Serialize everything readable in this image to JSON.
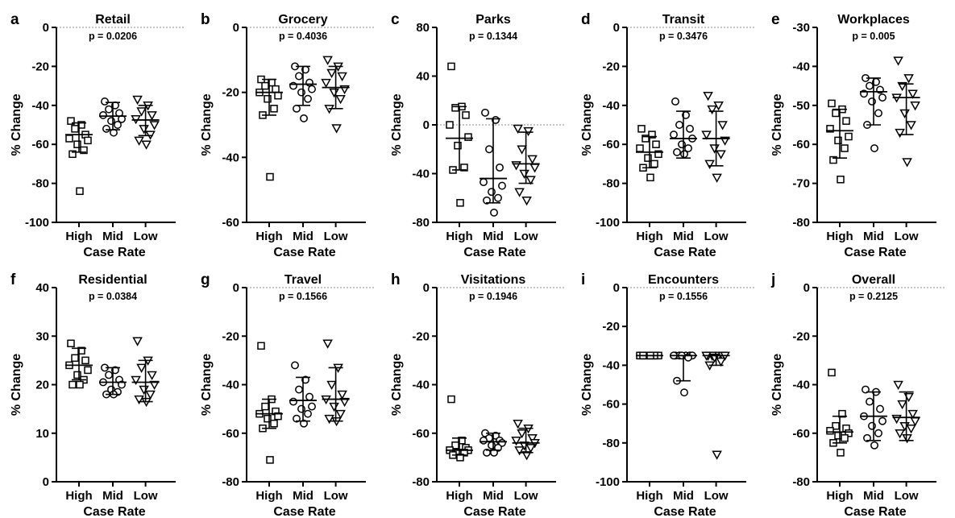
{
  "chart_data": [
    {
      "type": "scatter",
      "panel": "a",
      "title": "Retail",
      "p_value": "p = 0.0206",
      "xlabel": "Case Rate",
      "ylabel": "% Change",
      "categories": [
        "High",
        "Mid",
        "Low"
      ],
      "yticks": [
        0,
        -20,
        -40,
        -60,
        -80,
        -100
      ],
      "ylim": [
        -100,
        0
      ],
      "zero_line": true,
      "markers": [
        "square",
        "circle",
        "triangle-down"
      ],
      "points": [
        [
          -48,
          -50,
          -52,
          -55,
          -57,
          -58,
          -60,
          -63,
          -65,
          -84
        ],
        [
          -38,
          -40,
          -42,
          -44,
          -45,
          -47,
          -48,
          -50,
          -52,
          -54
        ],
        [
          -37,
          -40,
          -43,
          -45,
          -47,
          -50,
          -52,
          -55,
          -58,
          -60
        ]
      ],
      "mean": [
        -55,
        -45.5,
        -47.5
      ],
      "sd_upper": [
        -49,
        -38.5,
        -40
      ],
      "sd_lower": [
        -64,
        -52.5,
        -55.5
      ]
    },
    {
      "type": "scatter",
      "panel": "b",
      "title": "Grocery",
      "p_value": "p = 0.4036",
      "xlabel": "Case Rate",
      "ylabel": "% Change",
      "categories": [
        "High",
        "Mid",
        "Low"
      ],
      "yticks": [
        0,
        -20,
        -40,
        -60
      ],
      "ylim": [
        -60,
        0
      ],
      "zero_line": true,
      "markers": [
        "square",
        "circle",
        "triangle-down"
      ],
      "points": [
        [
          -16,
          -17,
          -18,
          -19,
          -20,
          -21,
          -22,
          -25,
          -27,
          -46
        ],
        [
          -12,
          -13,
          -15,
          -17,
          -18,
          -19,
          -20,
          -22,
          -25,
          -28
        ],
        [
          -10,
          -12,
          -14,
          -15,
          -17,
          -19,
          -20,
          -22,
          -25,
          -31
        ]
      ],
      "mean": [
        -20,
        -17.5,
        -18.5
      ],
      "sd_upper": [
        -16,
        -12,
        -12
      ],
      "sd_lower": [
        -27,
        -24,
        -25
      ]
    },
    {
      "type": "scatter",
      "panel": "c",
      "title": "Parks",
      "p_value": "p = 0.1344",
      "xlabel": "Case Rate",
      "ylabel": "% Change",
      "categories": [
        "High",
        "Mid",
        "Low"
      ],
      "yticks": [
        80,
        40,
        0,
        -40,
        -80
      ],
      "ylim": [
        -80,
        80
      ],
      "zero_line": true,
      "markers": [
        "square",
        "circle",
        "triangle-down"
      ],
      "points": [
        [
          48,
          15,
          14,
          8,
          0,
          -10,
          -17,
          -35,
          -37,
          -64
        ],
        [
          10,
          4,
          -20,
          -35,
          -47,
          -50,
          -55,
          -60,
          -62,
          -72
        ],
        [
          -3,
          -5,
          -20,
          -28,
          -33,
          -35,
          -40,
          -45,
          -55,
          -62
        ]
      ],
      "mean": [
        -11,
        -44,
        -32
      ],
      "sd_upper": [
        15,
        5,
        -6
      ],
      "sd_lower": [
        -37,
        -64,
        -48
      ]
    },
    {
      "type": "scatter",
      "panel": "d",
      "title": "Transit",
      "p_value": "p = 0.3476",
      "xlabel": "Case Rate",
      "ylabel": "% Change",
      "categories": [
        "High",
        "Mid",
        "Low"
      ],
      "yticks": [
        0,
        -20,
        -40,
        -60,
        -80,
        -100
      ],
      "ylim": [
        -100,
        0
      ],
      "zero_line": true,
      "markers": [
        "square",
        "circle",
        "triangle-down"
      ],
      "points": [
        [
          -52,
          -55,
          -57,
          -60,
          -62,
          -65,
          -67,
          -70,
          -72,
          -77
        ],
        [
          -38,
          -45,
          -50,
          -52,
          -55,
          -57,
          -60,
          -62,
          -64,
          -65
        ],
        [
          -35,
          -40,
          -42,
          -50,
          -55,
          -58,
          -62,
          -65,
          -70,
          -77
        ]
      ],
      "mean": [
        -64,
        -57,
        -57
      ],
      "sd_upper": [
        -56,
        -43,
        -43
      ],
      "sd_lower": [
        -72,
        -67,
        -71
      ]
    },
    {
      "type": "scatter",
      "panel": "e",
      "title": "Workplaces",
      "p_value": "p = 0.005",
      "xlabel": "Case Rate",
      "ylabel": "% Change",
      "categories": [
        "High",
        "Mid",
        "Low"
      ],
      "yticks": [
        -30,
        -40,
        -50,
        -60,
        -70,
        -80
      ],
      "ylim": [
        -80,
        -30
      ],
      "zero_line": false,
      "markers": [
        "square",
        "circle",
        "triangle-down"
      ],
      "points": [
        [
          -49.5,
          -51,
          -52,
          -54,
          -56,
          -58,
          -59,
          -61,
          -64,
          -69
        ],
        [
          -43,
          -44,
          -45,
          -46,
          -47,
          -48,
          -49,
          -52,
          -55,
          -61
        ],
        [
          -38.5,
          -43,
          -45,
          -47,
          -48,
          -50,
          -52,
          -55,
          -57,
          -64.5
        ]
      ],
      "mean": [
        -56.5,
        -46.5,
        -48
      ],
      "sd_upper": [
        -51,
        -43,
        -44.5
      ],
      "sd_lower": [
        -63.5,
        -55,
        -57.5
      ]
    },
    {
      "type": "scatter",
      "panel": "f",
      "title": "Residential",
      "p_value": "p = 0.0384",
      "xlabel": "Case Rate",
      "ylabel": "% Change",
      "categories": [
        "High",
        "Mid",
        "Low"
      ],
      "yticks": [
        40,
        30,
        20,
        10,
        0
      ],
      "ylim": [
        0,
        40
      ],
      "zero_line": false,
      "markers": [
        "square",
        "circle",
        "triangle-down"
      ],
      "points": [
        [
          28.5,
          27,
          25.5,
          25,
          24,
          23,
          22,
          21,
          20,
          20
        ],
        [
          23.5,
          23,
          22,
          21,
          20.5,
          20,
          19,
          18.5,
          18,
          18
        ],
        [
          29,
          25,
          23.5,
          22,
          21,
          20,
          19,
          18,
          17,
          16.5
        ]
      ],
      "mean": [
        24,
        20.5,
        20.5
      ],
      "sd_upper": [
        27.5,
        23.5,
        25
      ],
      "sd_lower": [
        21,
        18,
        16.5
      ]
    },
    {
      "type": "scatter",
      "panel": "g",
      "title": "Travel",
      "p_value": "p = 0.1566",
      "xlabel": "Case Rate",
      "ylabel": "% Change",
      "categories": [
        "High",
        "Mid",
        "Low"
      ],
      "yticks": [
        0,
        -20,
        -40,
        -60,
        -80
      ],
      "ylim": [
        -80,
        0
      ],
      "zero_line": true,
      "markers": [
        "square",
        "circle",
        "triangle-down"
      ],
      "points": [
        [
          -24,
          -46,
          -49,
          -51,
          -52,
          -53,
          -54,
          -56,
          -58,
          -71
        ],
        [
          -32,
          -38,
          -42,
          -45,
          -47,
          -49,
          -50,
          -52,
          -54,
          -56
        ],
        [
          -23,
          -33,
          -40,
          -44,
          -46,
          -47,
          -49,
          -52,
          -54,
          -55
        ]
      ],
      "mean": [
        -52,
        -46.5,
        -46
      ],
      "sd_upper": [
        -46,
        -37,
        -33
      ],
      "sd_lower": [
        -58,
        -55,
        -55
      ]
    },
    {
      "type": "scatter",
      "panel": "h",
      "title": "Visitations",
      "p_value": "p = 0.1946",
      "xlabel": "Case Rate",
      "ylabel": "% Change",
      "categories": [
        "High",
        "Mid",
        "Low"
      ],
      "yticks": [
        0,
        -20,
        -40,
        -60,
        -80
      ],
      "ylim": [
        -80,
        0
      ],
      "zero_line": true,
      "markers": [
        "square",
        "circle",
        "triangle-down"
      ],
      "points": [
        [
          -46,
          -63,
          -65,
          -66,
          -67,
          -67,
          -68,
          -68,
          -69,
          -70
        ],
        [
          -60,
          -61,
          -62,
          -63,
          -63,
          -64,
          -65,
          -66,
          -68,
          -68
        ],
        [
          -56,
          -58,
          -60,
          -62,
          -63,
          -64,
          -65,
          -66,
          -67,
          -69
        ]
      ],
      "mean": [
        -67,
        -63.5,
        -64
      ],
      "sd_upper": [
        -62,
        -60,
        -58
      ],
      "sd_lower": [
        -69,
        -67,
        -68
      ]
    },
    {
      "type": "scatter",
      "panel": "i",
      "title": "Encounters",
      "p_value": "p = 0.1556",
      "xlabel": "Case Rate",
      "ylabel": "% Change",
      "categories": [
        "High",
        "Mid",
        "Low"
      ],
      "yticks": [
        0,
        -20,
        -40,
        -60,
        -80,
        -100
      ],
      "ylim": [
        -100,
        0
      ],
      "zero_line": true,
      "markers": [
        "square",
        "circle",
        "triangle-down"
      ],
      "points": [
        [
          -35,
          -35,
          -35,
          -35,
          -35,
          -35,
          -35,
          -35,
          -35,
          -35
        ],
        [
          -35,
          -35,
          -35,
          -35,
          -35,
          -35,
          -35,
          -36,
          -48,
          -54
        ],
        [
          -35,
          -35,
          -35,
          -35,
          -35,
          -35,
          -36,
          -38,
          -40,
          -86
        ]
      ],
      "mean": [
        -35,
        -35,
        -35
      ],
      "sd_upper": [
        -35,
        -35,
        -35
      ],
      "sd_lower": [
        -35,
        -48,
        -40
      ]
    },
    {
      "type": "scatter",
      "panel": "j",
      "title": "Overall",
      "p_value": "p = 0.2125",
      "xlabel": "Case Rate",
      "ylabel": "% Change",
      "categories": [
        "High",
        "Mid",
        "Low"
      ],
      "yticks": [
        0,
        -20,
        -40,
        -60,
        -80
      ],
      "ylim": [
        -80,
        0
      ],
      "zero_line": true,
      "markers": [
        "square",
        "circle",
        "triangle-down"
      ],
      "points": [
        [
          -35,
          -52,
          -57,
          -58,
          -59,
          -60,
          -61,
          -62,
          -64,
          -68
        ],
        [
          -42,
          -43,
          -47,
          -50,
          -53,
          -55,
          -57,
          -60,
          -62,
          -65
        ],
        [
          -40,
          -45,
          -48,
          -52,
          -54,
          -55,
          -57,
          -58,
          -60,
          -62
        ]
      ],
      "mean": [
        -59.5,
        -53,
        -53.5
      ],
      "sd_upper": [
        -53,
        -43,
        -43
      ],
      "sd_lower": [
        -64,
        -63,
        -63
      ]
    }
  ]
}
